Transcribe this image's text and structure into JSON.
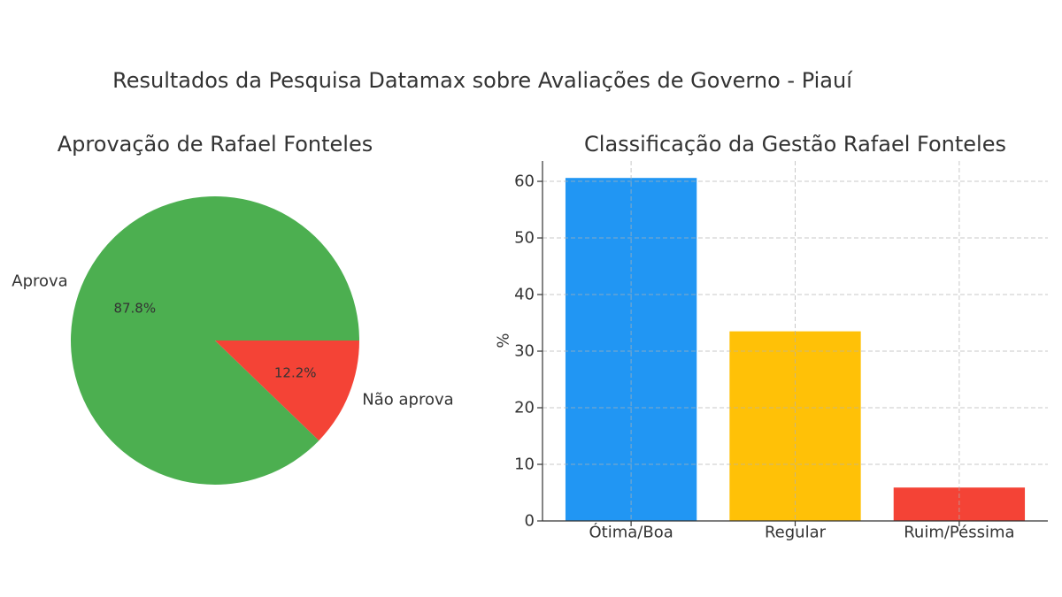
{
  "title": "Resultados da Pesquisa Datamax sobre Avaliações de Governo - Piauí",
  "chart_data": [
    {
      "type": "pie",
      "title": "Aprovação de Rafael Fonteles",
      "labels": [
        "Aprova",
        "Não aprova"
      ],
      "values": [
        87.8,
        12.2
      ],
      "value_labels": [
        "87.8%",
        "12.2%"
      ],
      "colors": [
        "#4CAF50",
        "#F44336"
      ]
    },
    {
      "type": "bar",
      "title": "Classificação da Gestão Rafael Fonteles",
      "categories": [
        "Ótima/Boa",
        "Regular",
        "Ruim/Péssima"
      ],
      "values": [
        60.6,
        33.5,
        5.9
      ],
      "colors": [
        "#2196F3",
        "#FFC107",
        "#F44336"
      ],
      "ylabel": "%",
      "ylim": [
        0,
        63.6
      ],
      "yticks": [
        0,
        10,
        20,
        30,
        40,
        50,
        60
      ],
      "grid": true
    }
  ]
}
